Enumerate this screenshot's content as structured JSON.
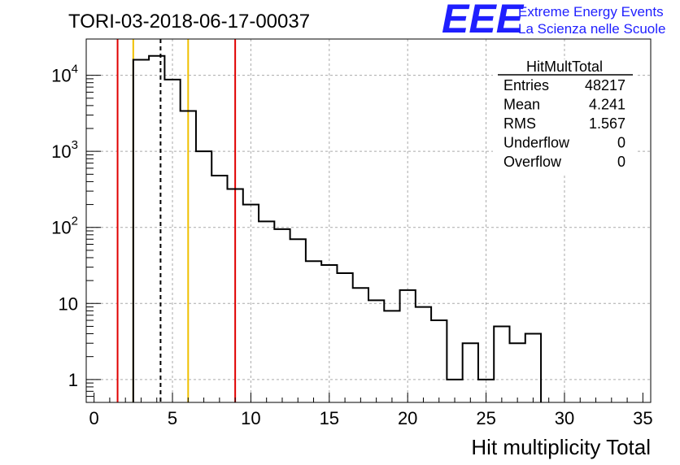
{
  "title": "TORI-03-2018-06-17-00037",
  "logo": {
    "mark": "EEE",
    "line1": "Extreme Energy Events",
    "line2": "La Scienza nelle Scuole",
    "color": "#1f1fff"
  },
  "stats": {
    "name": "HitMultTotal",
    "rows": [
      {
        "label": "Entries",
        "value": "48217"
      },
      {
        "label": "Mean",
        "value": "4.241"
      },
      {
        "label": "RMS",
        "value": "1.567"
      },
      {
        "label": "Underflow",
        "value": "0"
      },
      {
        "label": "Overflow",
        "value": "0"
      }
    ]
  },
  "chart_data": {
    "type": "bar",
    "histogram_style": "step",
    "title": "TORI-03-2018-06-17-00037",
    "xlabel": "Hit multiplicity Total",
    "ylabel": "",
    "xlim": [
      -0.5,
      35.5
    ],
    "ylim": [
      0.5,
      30000
    ],
    "yscale": "log",
    "grid": true,
    "legend": "stats box top-right",
    "x_ticks": [
      0,
      5,
      10,
      15,
      20,
      25,
      30,
      35
    ],
    "x_tick_labels": [
      "0",
      "5",
      "10",
      "15",
      "20",
      "25",
      "30",
      "35"
    ],
    "y_ticks": [
      1,
      10,
      100,
      1000,
      10000
    ],
    "y_tick_labels": [
      {
        "base": "1",
        "exp": ""
      },
      {
        "base": "10",
        "exp": ""
      },
      {
        "base": "10",
        "exp": "2"
      },
      {
        "base": "10",
        "exp": "3"
      },
      {
        "base": "10",
        "exp": "4"
      }
    ],
    "bin_width": 1,
    "bins": [
      {
        "x": 3,
        "count": 16000
      },
      {
        "x": 4,
        "count": 18000
      },
      {
        "x": 5,
        "count": 8800
      },
      {
        "x": 6,
        "count": 3400
      },
      {
        "x": 7,
        "count": 1000
      },
      {
        "x": 8,
        "count": 480
      },
      {
        "x": 9,
        "count": 320
      },
      {
        "x": 10,
        "count": 200
      },
      {
        "x": 11,
        "count": 120
      },
      {
        "x": 12,
        "count": 95
      },
      {
        "x": 13,
        "count": 70
      },
      {
        "x": 14,
        "count": 36
      },
      {
        "x": 15,
        "count": 32
      },
      {
        "x": 16,
        "count": 25
      },
      {
        "x": 17,
        "count": 16
      },
      {
        "x": 18,
        "count": 11
      },
      {
        "x": 19,
        "count": 8
      },
      {
        "x": 20,
        "count": 15
      },
      {
        "x": 21,
        "count": 9
      },
      {
        "x": 22,
        "count": 6
      },
      {
        "x": 23,
        "count": 1
      },
      {
        "x": 24,
        "count": 3
      },
      {
        "x": 25,
        "count": 1
      },
      {
        "x": 26,
        "count": 5
      },
      {
        "x": 27,
        "count": 3
      },
      {
        "x": 28,
        "count": 4
      }
    ],
    "markers": [
      {
        "name": "red-line-left",
        "x": 1.5,
        "color": "#e00000",
        "style": "solid"
      },
      {
        "name": "yellow-line-left",
        "x": 2.5,
        "color": "#f0c000",
        "style": "solid"
      },
      {
        "name": "mean-line",
        "x": 4.241,
        "color": "#000000",
        "style": "dashed"
      },
      {
        "name": "yellow-line-right",
        "x": 6.0,
        "color": "#f0c000",
        "style": "solid"
      },
      {
        "name": "red-line-right",
        "x": 9.0,
        "color": "#e00000",
        "style": "solid"
      }
    ]
  }
}
